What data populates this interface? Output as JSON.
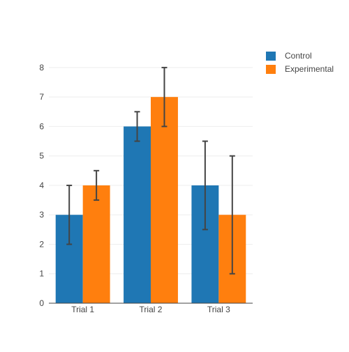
{
  "chart_data": {
    "type": "bar",
    "categories": [
      "Trial 1",
      "Trial 2",
      "Trial 3"
    ],
    "series": [
      {
        "name": "Control",
        "color": "#1f77b4",
        "values": [
          3,
          6,
          4
        ],
        "error_plus": [
          1,
          0.5,
          1.5
        ],
        "error_minus": [
          1,
          0.5,
          1.5
        ]
      },
      {
        "name": "Experimental",
        "color": "#ff7f0e",
        "values": [
          4,
          7,
          3
        ],
        "error_plus": [
          0.5,
          1,
          2
        ],
        "error_minus": [
          0.5,
          1,
          2
        ]
      }
    ],
    "ylim": [
      0,
      8.4
    ],
    "yticks": [
      0,
      1,
      2,
      3,
      4,
      5,
      6,
      7,
      8
    ],
    "grid": true,
    "legend_position": "top-right",
    "error_bar_color": "#444444",
    "grid_color": "#eeeeee",
    "axis_color": "#444444"
  }
}
